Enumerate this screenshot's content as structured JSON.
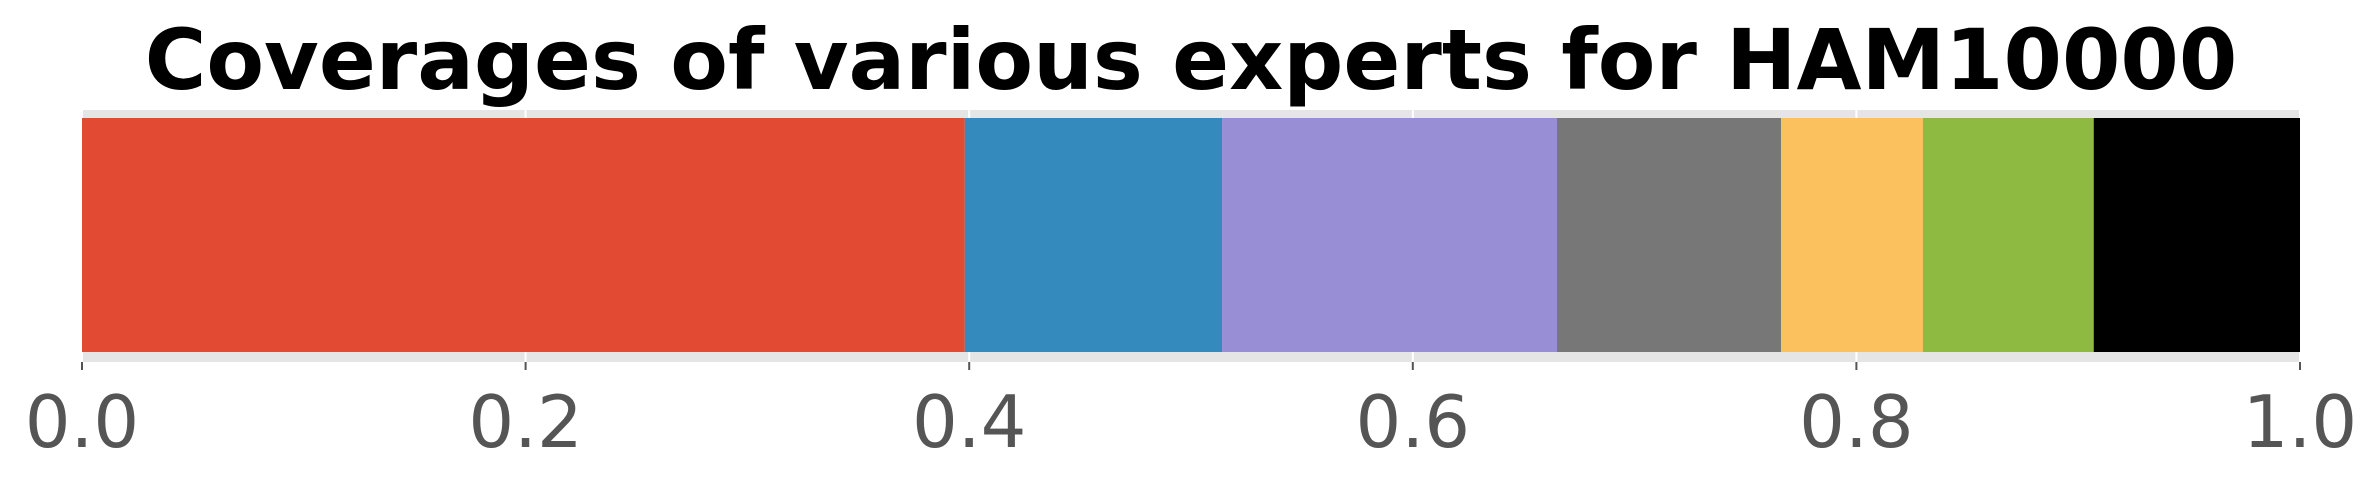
{
  "chart_data": {
    "type": "bar",
    "orientation": "horizontal",
    "stacked": true,
    "title": "Coverages of various experts for HAM10000",
    "xlabel": "",
    "ylabel": "",
    "xlim": [
      0.0,
      1.0
    ],
    "x_ticks": [
      0.0,
      0.2,
      0.4,
      0.6,
      0.8,
      1.0
    ],
    "x_tick_labels": [
      "0.0",
      "0.2",
      "0.4",
      "0.6",
      "0.8",
      "1.0"
    ],
    "grid": true,
    "legend": "none",
    "segments": [
      {
        "value": 0.398,
        "color": "#E24A33"
      },
      {
        "value": 0.116,
        "color": "#348ABD"
      },
      {
        "value": 0.151,
        "color": "#988ED5"
      },
      {
        "value": 0.101,
        "color": "#777777"
      },
      {
        "value": 0.064,
        "color": "#FBC15E"
      },
      {
        "value": 0.077,
        "color": "#8EBA42"
      },
      {
        "value": 0.093,
        "color": "#000000"
      }
    ]
  }
}
